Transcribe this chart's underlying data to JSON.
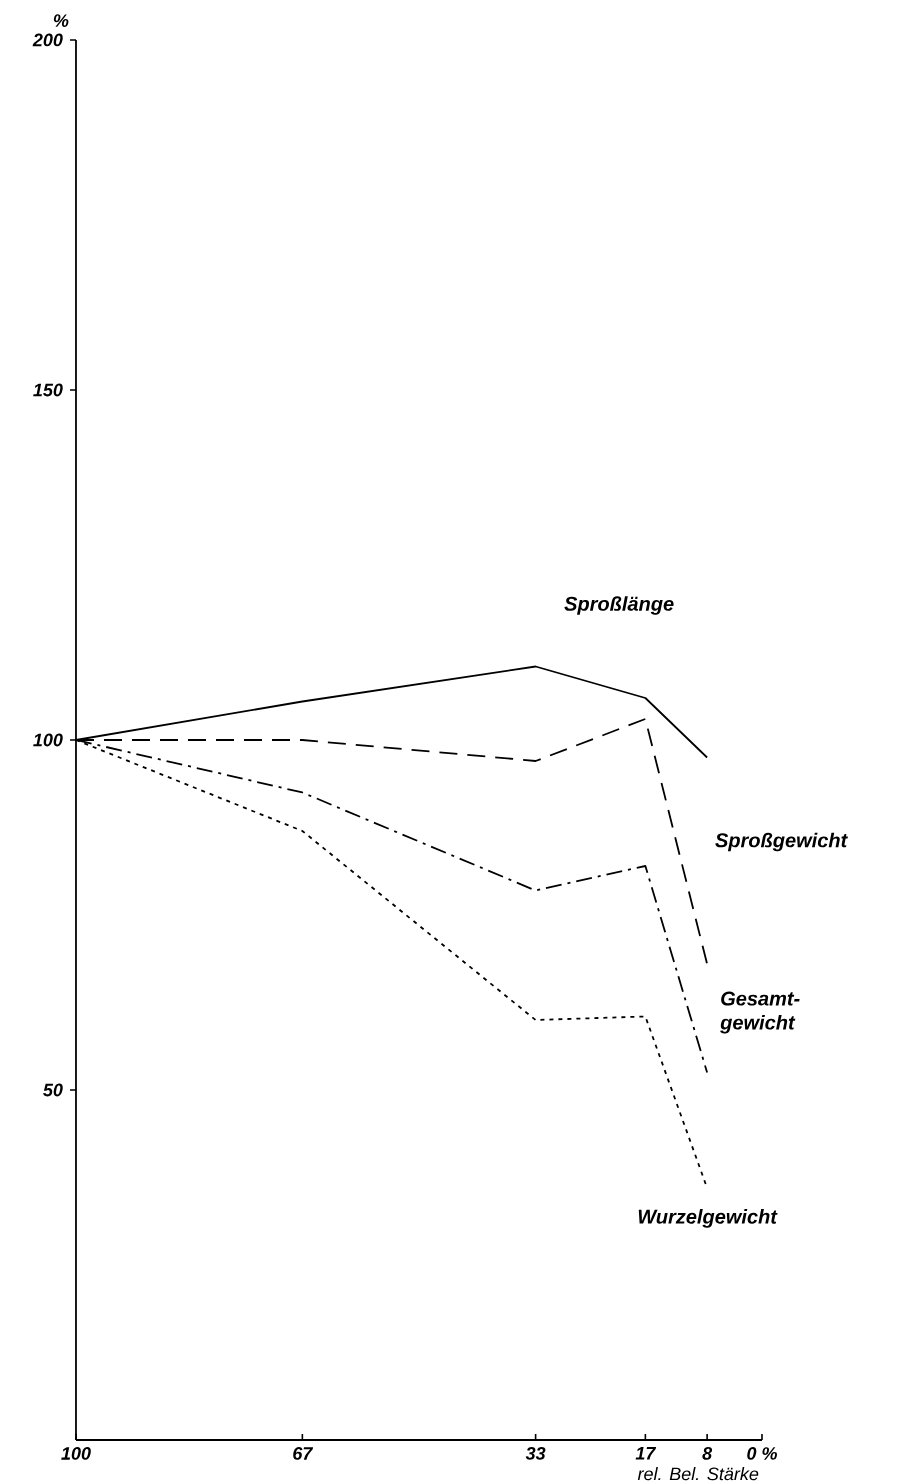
{
  "chart_data": {
    "type": "line",
    "ylabel": "%",
    "xlabel": "rel. Bel. Stärke",
    "x": [
      100,
      67,
      33,
      17,
      8
    ],
    "xlim": [
      100,
      0
    ],
    "xticks": [
      100,
      67,
      33,
      17,
      8,
      {
        "value": 0,
        "label": "0 %"
      }
    ],
    "ylim": [
      0,
      200
    ],
    "yticks": [
      50,
      100,
      150,
      200
    ],
    "marker": "none",
    "series": [
      {
        "name": "Sproßlänge",
        "color": "#000000",
        "line_style": "solid",
        "values": [
          100,
          105.5,
          110.5,
          106,
          97.5
        ]
      },
      {
        "name": "Sproßgewicht",
        "color": "#000000",
        "line_style": "dashed",
        "values": [
          100,
          100,
          97,
          103,
          68
        ]
      },
      {
        "name": "Gesamt-gewicht",
        "color": "#000000",
        "line_style": "dashdot",
        "values": [
          100,
          92.5,
          78.5,
          82,
          52.5
        ]
      },
      {
        "name": "Wurzelgewicht",
        "color": "#000000",
        "line_style": "dotted",
        "values": [
          100,
          87,
          60,
          60.5,
          36
        ]
      }
    ]
  }
}
